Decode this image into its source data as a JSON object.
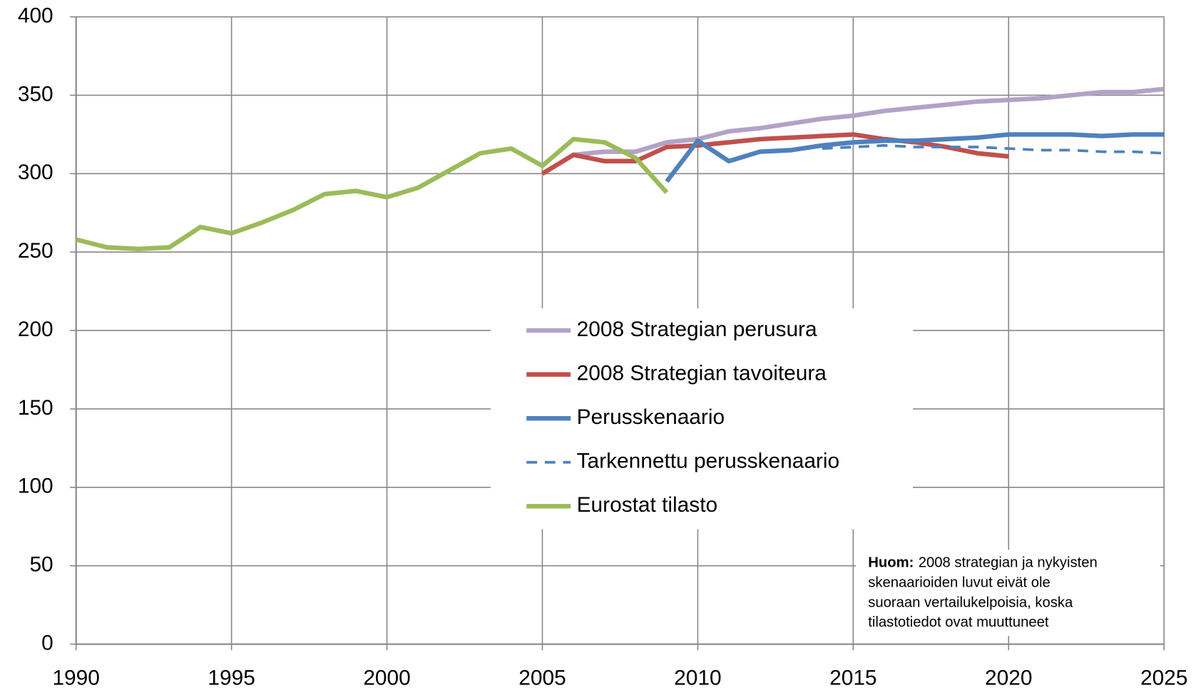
{
  "chart_data": {
    "type": "line",
    "x": [
      1990,
      1991,
      1992,
      1993,
      1994,
      1995,
      1996,
      1997,
      1998,
      1999,
      2000,
      2001,
      2002,
      2003,
      2004,
      2005,
      2006,
      2007,
      2008,
      2009,
      2010,
      2011,
      2012,
      2013,
      2014,
      2015,
      2016,
      2017,
      2018,
      2019,
      2020,
      2021,
      2022,
      2023,
      2024,
      2025
    ],
    "series": [
      {
        "name": "2008 Strategian perusura",
        "color": "#b3a2c7",
        "dash": false,
        "values": [
          null,
          null,
          null,
          null,
          null,
          null,
          null,
          null,
          null,
          null,
          null,
          null,
          null,
          null,
          null,
          null,
          312,
          314,
          314,
          320,
          322,
          327,
          329,
          332,
          335,
          337,
          340,
          342,
          344,
          346,
          347,
          348,
          350,
          352,
          352,
          354
        ]
      },
      {
        "name": "2008 Strategian tavoiteura",
        "color": "#c0504d",
        "dash": false,
        "values": [
          null,
          null,
          null,
          null,
          null,
          null,
          null,
          null,
          null,
          null,
          null,
          null,
          null,
          null,
          null,
          300,
          312,
          308,
          308,
          317,
          318,
          320,
          322,
          323,
          324,
          325,
          322,
          320,
          317,
          313,
          311,
          null,
          null,
          null,
          null,
          null
        ]
      },
      {
        "name": "Perusskenaario",
        "color": "#4f81bd",
        "dash": false,
        "values": [
          null,
          null,
          null,
          null,
          null,
          null,
          null,
          null,
          null,
          null,
          null,
          null,
          null,
          null,
          null,
          null,
          null,
          null,
          null,
          295,
          321,
          308,
          314,
          315,
          318,
          320,
          321,
          321,
          322,
          323,
          325,
          325,
          325,
          324,
          325,
          325
        ]
      },
      {
        "name": "Tarkennettu perusskenaario",
        "color": "#4f81bd",
        "dash": true,
        "values": [
          null,
          null,
          null,
          null,
          null,
          null,
          null,
          null,
          null,
          null,
          null,
          null,
          null,
          null,
          null,
          null,
          null,
          null,
          null,
          null,
          null,
          null,
          null,
          null,
          316,
          317,
          318,
          317,
          317,
          317,
          316,
          315,
          315,
          314,
          314,
          313
        ]
      },
      {
        "name": "Eurostat tilasto",
        "color": "#9bbb59",
        "dash": false,
        "values": [
          258,
          253,
          252,
          253,
          266,
          262,
          269,
          277,
          287,
          289,
          285,
          291,
          302,
          313,
          316,
          305,
          322,
          320,
          310,
          288,
          null,
          null,
          null,
          null,
          null,
          null,
          null,
          null,
          null,
          null,
          null,
          null,
          null,
          null,
          null,
          null
        ]
      }
    ],
    "xlim": [
      1990,
      2025
    ],
    "xticks": [
      1990,
      1995,
      2000,
      2005,
      2010,
      2015,
      2020,
      2025
    ],
    "ylim": [
      0,
      400
    ],
    "yticks": [
      0,
      50,
      100,
      150,
      200,
      250,
      300,
      350,
      400
    ],
    "grid": true,
    "annotation": {
      "label": "Huom:",
      "lines": [
        "2008 strategian ja nykyisten",
        "skenaarioiden luvut eivät ole",
        "suoraan vertailukelpoisia, koska",
        "tilastotiedot ovat muuttuneet"
      ]
    }
  }
}
